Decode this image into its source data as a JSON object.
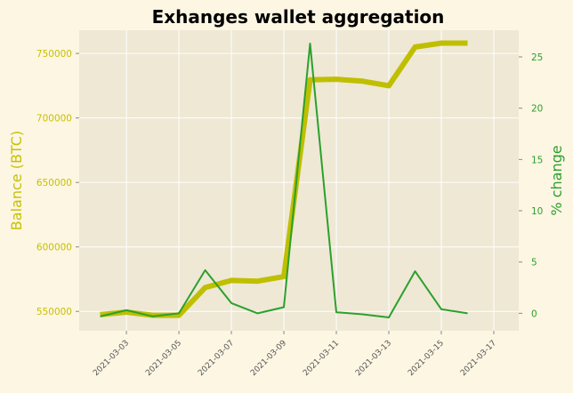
{
  "chart_data": {
    "type": "line",
    "title": "Exhanges wallet aggregation",
    "xlabel": "",
    "ylabel_left": "Balance (BTC)",
    "ylabel_right": "% change",
    "x_ticks": [
      "2021-03-03",
      "2021-03-05",
      "2021-03-07",
      "2021-03-09",
      "2021-03-11",
      "2021-03-13",
      "2021-03-15",
      "2021-03-17"
    ],
    "x": [
      "2021-03-02",
      "2021-03-03",
      "2021-03-04",
      "2021-03-05",
      "2021-03-06",
      "2021-03-07",
      "2021-03-08",
      "2021-03-09",
      "2021-03-10",
      "2021-03-11",
      "2021-03-12",
      "2021-03-13",
      "2021-03-14",
      "2021-03-15",
      "2021-03-16"
    ],
    "ylim_left": [
      535000,
      768000
    ],
    "yticks_left": [
      550000,
      600000,
      650000,
      700000,
      750000
    ],
    "ylim_right": [
      -1.7,
      27.6
    ],
    "yticks_right": [
      0,
      5,
      10,
      15,
      20,
      25
    ],
    "grid": true,
    "series": [
      {
        "name": "Balance (BTC)",
        "axis": "left",
        "color": "#bfbf00",
        "values": [
          547500,
          549500,
          547000,
          547000,
          568500,
          574000,
          573500,
          577000,
          729500,
          730000,
          728500,
          725000,
          755000,
          758000,
          758000
        ]
      },
      {
        "name": "% change",
        "axis": "right",
        "color": "#2ca02c",
        "values": [
          -0.3,
          0.3,
          -0.3,
          0.0,
          4.2,
          1.0,
          0.0,
          0.6,
          26.3,
          0.1,
          -0.1,
          -0.4,
          4.1,
          0.4,
          0.0
        ]
      }
    ]
  },
  "colors": {
    "background": "#fdf6e3",
    "plot_area": "#eee8d5",
    "grid": "#ffffff",
    "left_axis": "#bfbf00",
    "right_axis": "#2ca02c"
  }
}
